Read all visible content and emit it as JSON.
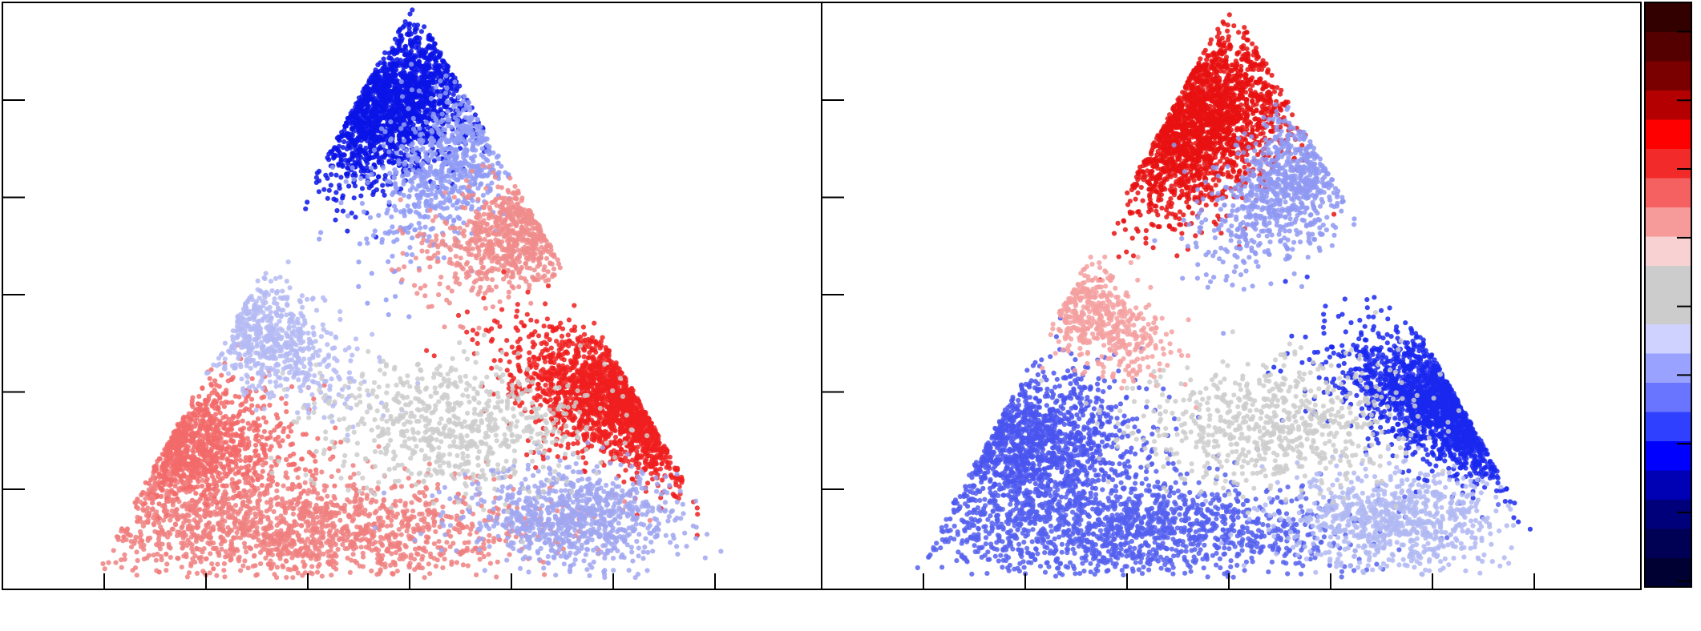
{
  "chart_data": [
    {
      "type": "scatter",
      "title": "",
      "xlabel": "",
      "ylabel": "",
      "x_ticks": 7,
      "y_ticks": 5,
      "grid": false,
      "point_clusters": [
        {
          "name": "",
          "shape": "ellipse",
          "cx": 0.47,
          "cy": 0.83,
          "rx": 0.09,
          "ry": 0.13,
          "rot": -30,
          "color": "#0a14e6",
          "n": 1800
        },
        {
          "name": "",
          "shape": "ellipse",
          "cx": 0.55,
          "cy": 0.73,
          "rx": 0.07,
          "ry": 0.14,
          "rot": -25,
          "color": "#8f9bf5",
          "n": 700
        },
        {
          "name": "",
          "shape": "ellipse",
          "cx": 0.65,
          "cy": 0.62,
          "rx": 0.07,
          "ry": 0.12,
          "rot": -50,
          "color": "#f08c8c",
          "n": 700
        },
        {
          "name": "",
          "shape": "ellipse",
          "cx": 0.79,
          "cy": 0.3,
          "rx": 0.16,
          "ry": 0.08,
          "rot": -35,
          "color": "#f01e1e",
          "n": 1700
        },
        {
          "name": "",
          "shape": "ellipse",
          "cx": 0.2,
          "cy": 0.25,
          "rx": 0.13,
          "ry": 0.1,
          "rot": -10,
          "color": "#f26a6a",
          "n": 1100
        },
        {
          "name": "",
          "shape": "ellipse",
          "cx": 0.36,
          "cy": 0.1,
          "rx": 0.26,
          "ry": 0.08,
          "rot": 0,
          "color": "#f08080",
          "n": 1500
        },
        {
          "name": "",
          "shape": "ellipse",
          "cx": 0.7,
          "cy": 0.12,
          "rx": 0.12,
          "ry": 0.08,
          "rot": 0,
          "color": "#a0a6f0",
          "n": 900
        },
        {
          "name": "",
          "shape": "ellipse",
          "cx": 0.3,
          "cy": 0.45,
          "rx": 0.07,
          "ry": 0.14,
          "rot": 40,
          "color": "#b4baf3",
          "n": 600
        },
        {
          "name": "",
          "shape": "ellipse",
          "cx": 0.55,
          "cy": 0.28,
          "rx": 0.15,
          "ry": 0.1,
          "rot": 0,
          "color": "#cccccc",
          "n": 700
        }
      ]
    },
    {
      "type": "scatter",
      "title": "",
      "xlabel": "",
      "ylabel": "",
      "x_ticks": 7,
      "y_ticks": 5,
      "grid": false,
      "point_clusters": [
        {
          "name": "",
          "shape": "ellipse",
          "cx": 0.45,
          "cy": 0.8,
          "rx": 0.1,
          "ry": 0.15,
          "rot": -30,
          "color": "#e81010",
          "n": 2000
        },
        {
          "name": "",
          "shape": "ellipse",
          "cx": 0.58,
          "cy": 0.7,
          "rx": 0.07,
          "ry": 0.15,
          "rot": -30,
          "color": "#8f99f2",
          "n": 800
        },
        {
          "name": "",
          "shape": "ellipse",
          "cx": 0.8,
          "cy": 0.3,
          "rx": 0.15,
          "ry": 0.08,
          "rot": -35,
          "color": "#1a28ee",
          "n": 1700
        },
        {
          "name": "",
          "shape": "ellipse",
          "cx": 0.24,
          "cy": 0.25,
          "rx": 0.13,
          "ry": 0.11,
          "rot": -10,
          "color": "#4a55ee",
          "n": 1300
        },
        {
          "name": "",
          "shape": "ellipse",
          "cx": 0.36,
          "cy": 0.1,
          "rx": 0.26,
          "ry": 0.08,
          "rot": 0,
          "color": "#5560ee",
          "n": 1500
        },
        {
          "name": "",
          "shape": "ellipse",
          "cx": 0.7,
          "cy": 0.12,
          "rx": 0.12,
          "ry": 0.08,
          "rot": 0,
          "color": "#b0b8f2",
          "n": 800
        },
        {
          "name": "",
          "shape": "ellipse",
          "cx": 0.32,
          "cy": 0.48,
          "rx": 0.06,
          "ry": 0.12,
          "rot": 40,
          "color": "#f4a0a0",
          "n": 500
        },
        {
          "name": "",
          "shape": "ellipse",
          "cx": 0.55,
          "cy": 0.28,
          "rx": 0.15,
          "ry": 0.1,
          "rot": 0,
          "color": "#cccccc",
          "n": 700
        }
      ]
    }
  ],
  "colorbar": {
    "colors": [
      "#000033",
      "#000055",
      "#00007a",
      "#0000b4",
      "#0000ff",
      "#3040ff",
      "#6a75ff",
      "#9aa2ff",
      "#cfd2ff",
      "#cccccc",
      "#cccccc",
      "#f8d2d2",
      "#f79a9a",
      "#f56060",
      "#f22a2a",
      "#ff0000",
      "#b40000",
      "#7a0000",
      "#550000",
      "#330000"
    ],
    "tick_count": 9
  }
}
